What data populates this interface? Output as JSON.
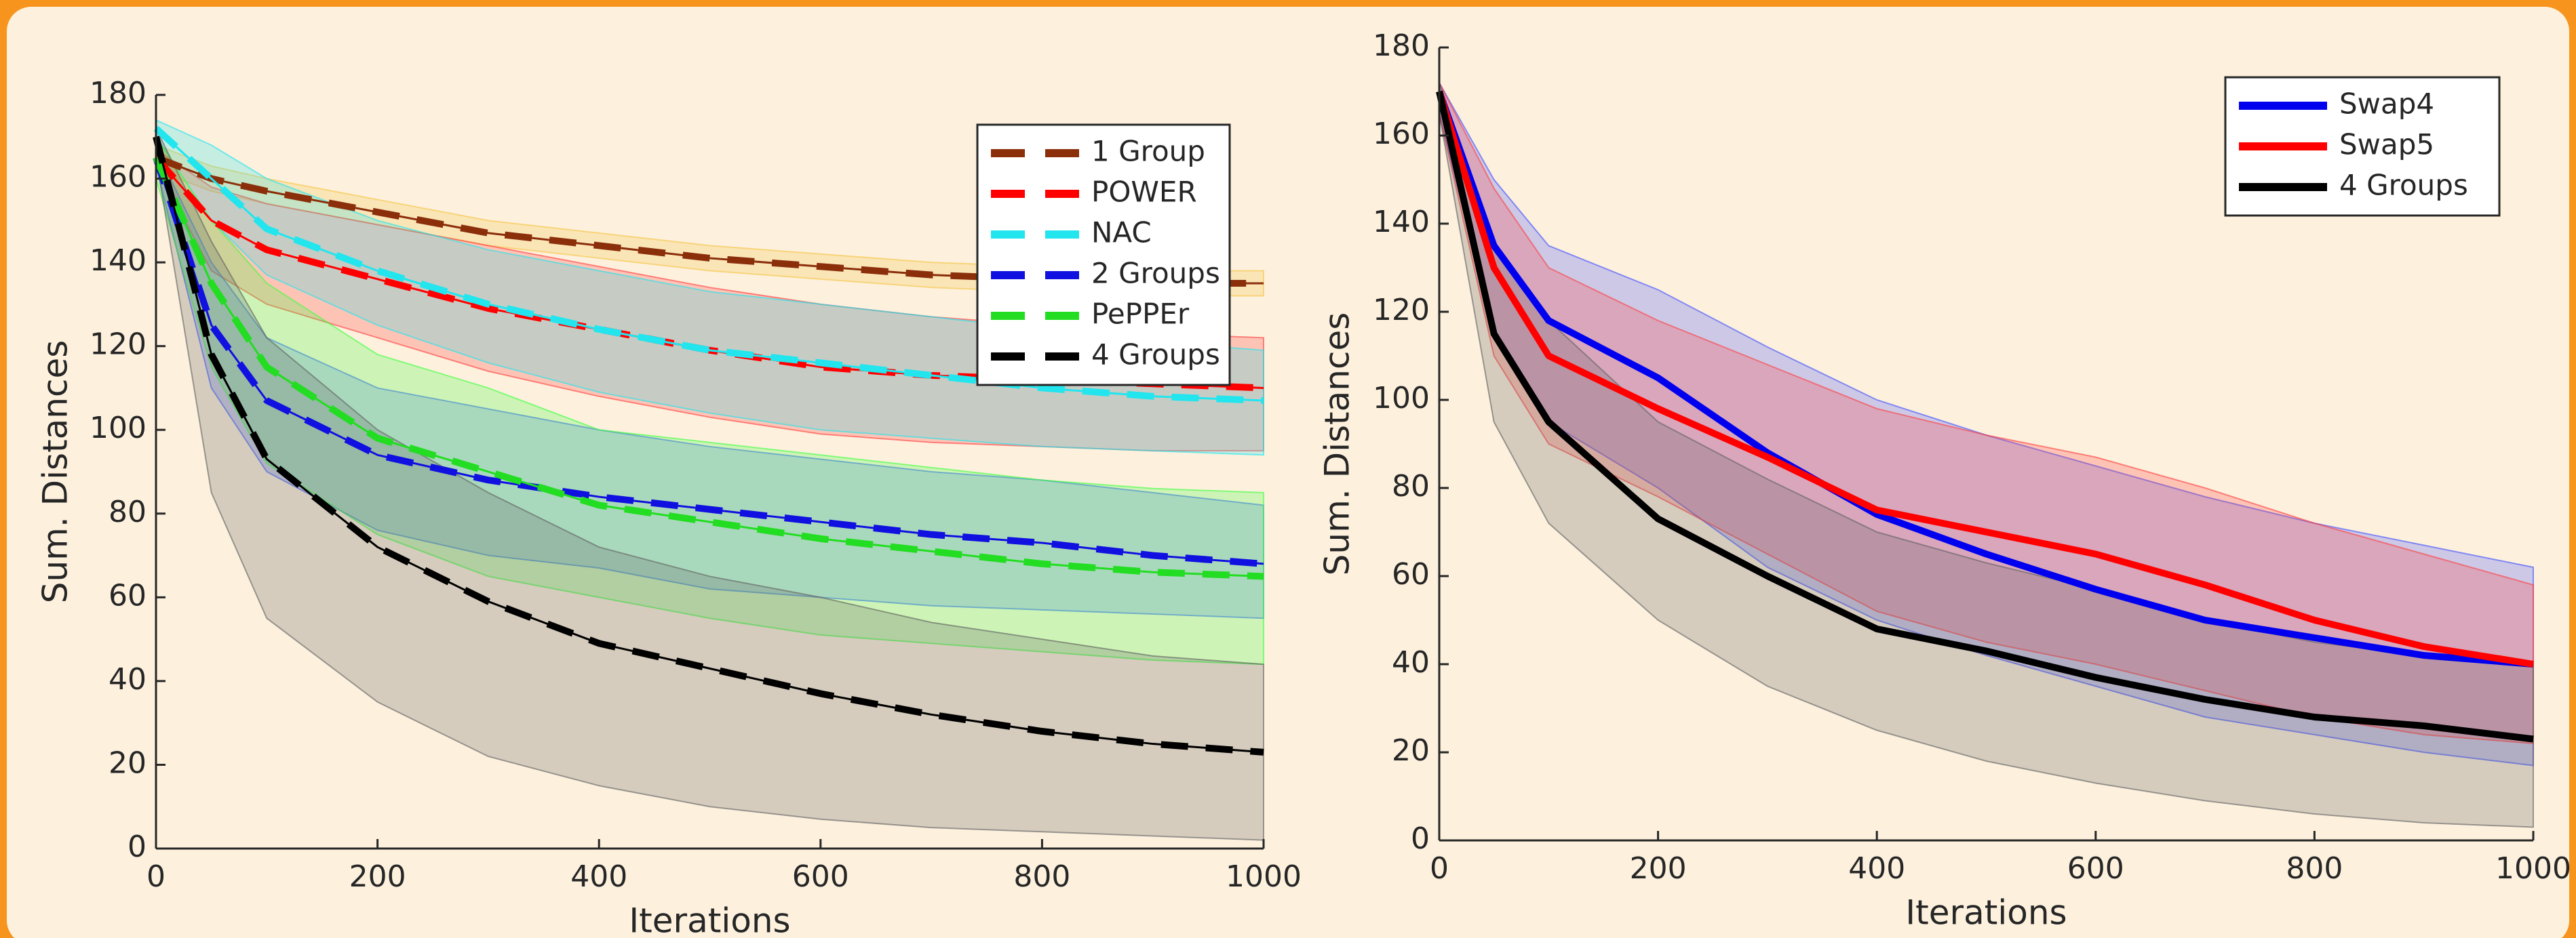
{
  "chart_data": [
    {
      "type": "line",
      "xlabel": "Iterations",
      "ylabel": "Sum. Distances",
      "line_style": "dashed",
      "legend_loc": "upper right",
      "x": [
        0,
        50,
        100,
        200,
        300,
        400,
        500,
        600,
        700,
        800,
        900,
        1000
      ],
      "xlim": [
        0,
        1000
      ],
      "ylim": [
        0,
        180
      ],
      "xticks": [
        0,
        200,
        400,
        600,
        800,
        1000
      ],
      "yticks": [
        0,
        20,
        40,
        60,
        80,
        100,
        120,
        140,
        160,
        180
      ],
      "series": [
        {
          "name": "1 Group",
          "color": "#8b2e0a",
          "band_color": "#f5c542",
          "values": [
            165,
            160,
            157,
            152,
            147,
            144,
            141,
            139,
            137,
            136,
            135,
            135
          ],
          "lower": [
            162,
            157,
            154,
            149,
            144,
            141,
            138,
            136,
            134,
            133,
            132,
            132
          ],
          "upper": [
            168,
            163,
            160,
            155,
            150,
            147,
            144,
            142,
            140,
            139,
            138,
            138
          ]
        },
        {
          "name": "POWER",
          "color": "#ff0000",
          "band_color": "#ff4040",
          "values": [
            165,
            150,
            143,
            136,
            129,
            124,
            119,
            115,
            113,
            112,
            111,
            110
          ],
          "lower": [
            163,
            138,
            130,
            122,
            114,
            108,
            103,
            99,
            97,
            96,
            95,
            95
          ],
          "upper": [
            167,
            158,
            154,
            149,
            144,
            139,
            134,
            130,
            127,
            125,
            123,
            122
          ]
        },
        {
          "name": "NAC",
          "color": "#22e5ee",
          "band_color": "#22e5ee",
          "values": [
            172,
            160,
            148,
            138,
            130,
            124,
            119,
            116,
            113,
            110,
            108,
            107
          ],
          "lower": [
            170,
            150,
            137,
            125,
            116,
            109,
            104,
            100,
            98,
            96,
            95,
            94
          ],
          "upper": [
            174,
            168,
            160,
            150,
            143,
            138,
            133,
            130,
            127,
            124,
            121,
            119
          ]
        },
        {
          "name": "2 Groups",
          "color": "#1010e0",
          "band_color": "#4060ff",
          "values": [
            165,
            125,
            107,
            94,
            88,
            84,
            81,
            78,
            75,
            73,
            70,
            68
          ],
          "lower": [
            163,
            110,
            90,
            76,
            70,
            67,
            62,
            60,
            58,
            57,
            56,
            55
          ],
          "upper": [
            167,
            140,
            122,
            110,
            105,
            100,
            96,
            93,
            90,
            88,
            85,
            82
          ]
        },
        {
          "name": "PePPEr",
          "color": "#22dd22",
          "band_color": "#40ff40",
          "values": [
            165,
            135,
            115,
            98,
            90,
            82,
            78,
            74,
            71,
            68,
            66,
            65
          ],
          "lower": [
            160,
            115,
            92,
            75,
            65,
            60,
            55,
            51,
            49,
            47,
            45,
            44
          ],
          "upper": [
            170,
            150,
            135,
            118,
            110,
            100,
            97,
            94,
            91,
            88,
            86,
            85
          ]
        },
        {
          "name": "4 Groups",
          "color": "#000000",
          "band_color": "#606060",
          "values": [
            170,
            118,
            93,
            72,
            59,
            49,
            43,
            37,
            32,
            28,
            25,
            23
          ],
          "lower": [
            165,
            85,
            55,
            35,
            22,
            15,
            10,
            7,
            5,
            4,
            3,
            2
          ],
          "upper": [
            172,
            145,
            122,
            100,
            85,
            72,
            65,
            60,
            54,
            50,
            46,
            44
          ]
        }
      ]
    },
    {
      "type": "line",
      "xlabel": "Iterations",
      "ylabel": "Sum. Distances",
      "line_style": "solid",
      "legend_loc": "upper right",
      "x": [
        0,
        50,
        100,
        200,
        300,
        400,
        500,
        600,
        700,
        800,
        900,
        1000
      ],
      "xlim": [
        0,
        1000
      ],
      "ylim": [
        0,
        180
      ],
      "xticks": [
        0,
        200,
        400,
        600,
        800,
        1000
      ],
      "yticks": [
        0,
        20,
        40,
        60,
        80,
        100,
        120,
        140,
        160,
        180
      ],
      "series": [
        {
          "name": "Swap4",
          "color": "#0000ee",
          "band_color": "#4050ff",
          "values": [
            170,
            135,
            118,
            105,
            88,
            74,
            65,
            57,
            50,
            46,
            42,
            40
          ],
          "lower": [
            165,
            115,
            95,
            80,
            62,
            50,
            42,
            35,
            28,
            24,
            20,
            17
          ],
          "upper": [
            172,
            150,
            135,
            125,
            112,
            100,
            92,
            85,
            78,
            72,
            67,
            62
          ]
        },
        {
          "name": "Swap5",
          "color": "#ff0000",
          "band_color": "#ff4040",
          "values": [
            170,
            130,
            110,
            98,
            87,
            75,
            70,
            65,
            58,
            50,
            44,
            40
          ],
          "lower": [
            165,
            110,
            90,
            78,
            65,
            52,
            45,
            40,
            34,
            28,
            24,
            22
          ],
          "upper": [
            172,
            148,
            130,
            118,
            108,
            98,
            92,
            87,
            80,
            72,
            65,
            58
          ]
        },
        {
          "name": "4 Groups",
          "color": "#000000",
          "band_color": "#606060",
          "values": [
            170,
            115,
            95,
            73,
            60,
            48,
            43,
            37,
            32,
            28,
            26,
            23
          ],
          "lower": [
            165,
            95,
            72,
            50,
            35,
            25,
            18,
            13,
            9,
            6,
            4,
            3
          ],
          "upper": [
            172,
            135,
            118,
            95,
            82,
            70,
            63,
            57,
            50,
            45,
            42,
            40
          ]
        }
      ]
    }
  ]
}
